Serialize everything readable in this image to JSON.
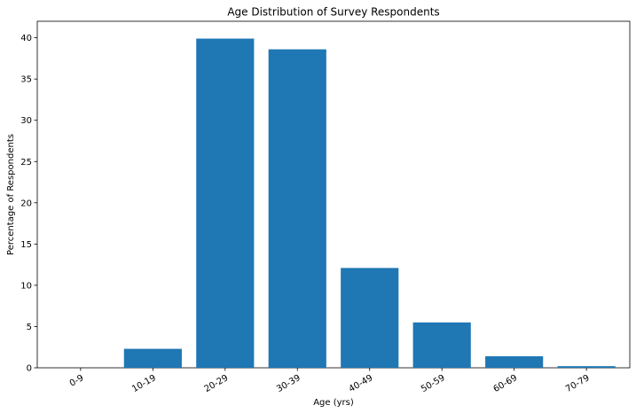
{
  "chart_data": {
    "type": "bar",
    "title": "Age Distribution of Survey Respondents",
    "xlabel": "Age (yrs)",
    "ylabel": "Percentage of Respondents",
    "categories": [
      "0-9",
      "10-19",
      "20-29",
      "30-39",
      "40-49",
      "50-59",
      "60-69",
      "70-79"
    ],
    "values": [
      0,
      2.3,
      39.9,
      38.6,
      12.1,
      5.5,
      1.4,
      0.2
    ],
    "ylim": [
      0,
      42
    ],
    "yticks": [
      0,
      5,
      10,
      15,
      20,
      25,
      30,
      35,
      40
    ],
    "bar_color": "#1f77b4",
    "grid": false,
    "legend": "none"
  }
}
